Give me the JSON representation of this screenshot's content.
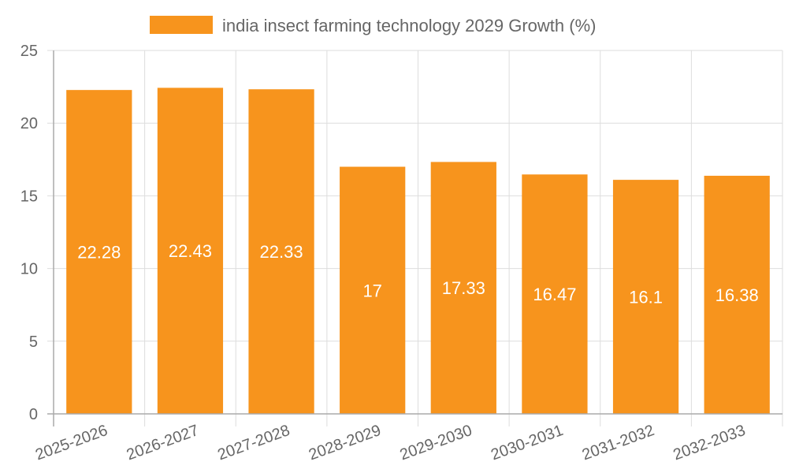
{
  "chart_data": {
    "type": "bar",
    "title": "",
    "xlabel": "",
    "ylabel": "",
    "categories": [
      "2025-2026",
      "2026-2027",
      "2027-2028",
      "2028-2029",
      "2029-2030",
      "2030-2031",
      "2031-2032",
      "2032-2033"
    ],
    "series": [
      {
        "name": "india insect farming technology 2029 Growth (%)",
        "color": "#f7941d",
        "values": [
          22.28,
          22.43,
          22.33,
          17,
          17.33,
          16.47,
          16.1,
          16.38
        ]
      }
    ],
    "data_labels": [
      "22.28",
      "22.43",
      "22.33",
      "17",
      "17.33",
      "16.47",
      "16.1",
      "16.38"
    ],
    "ylim": [
      0,
      25
    ],
    "yticks": [
      "0",
      "5",
      "10",
      "15",
      "20",
      "25"
    ],
    "ytick_values": [
      0,
      5,
      10,
      15,
      20,
      25
    ],
    "grid": true,
    "legend_position": "top-center",
    "data_label_color": "#ffffff",
    "grid_color": "#dddddd",
    "axis_color": "#aaaaaa",
    "tick_text_color": "#666666"
  }
}
